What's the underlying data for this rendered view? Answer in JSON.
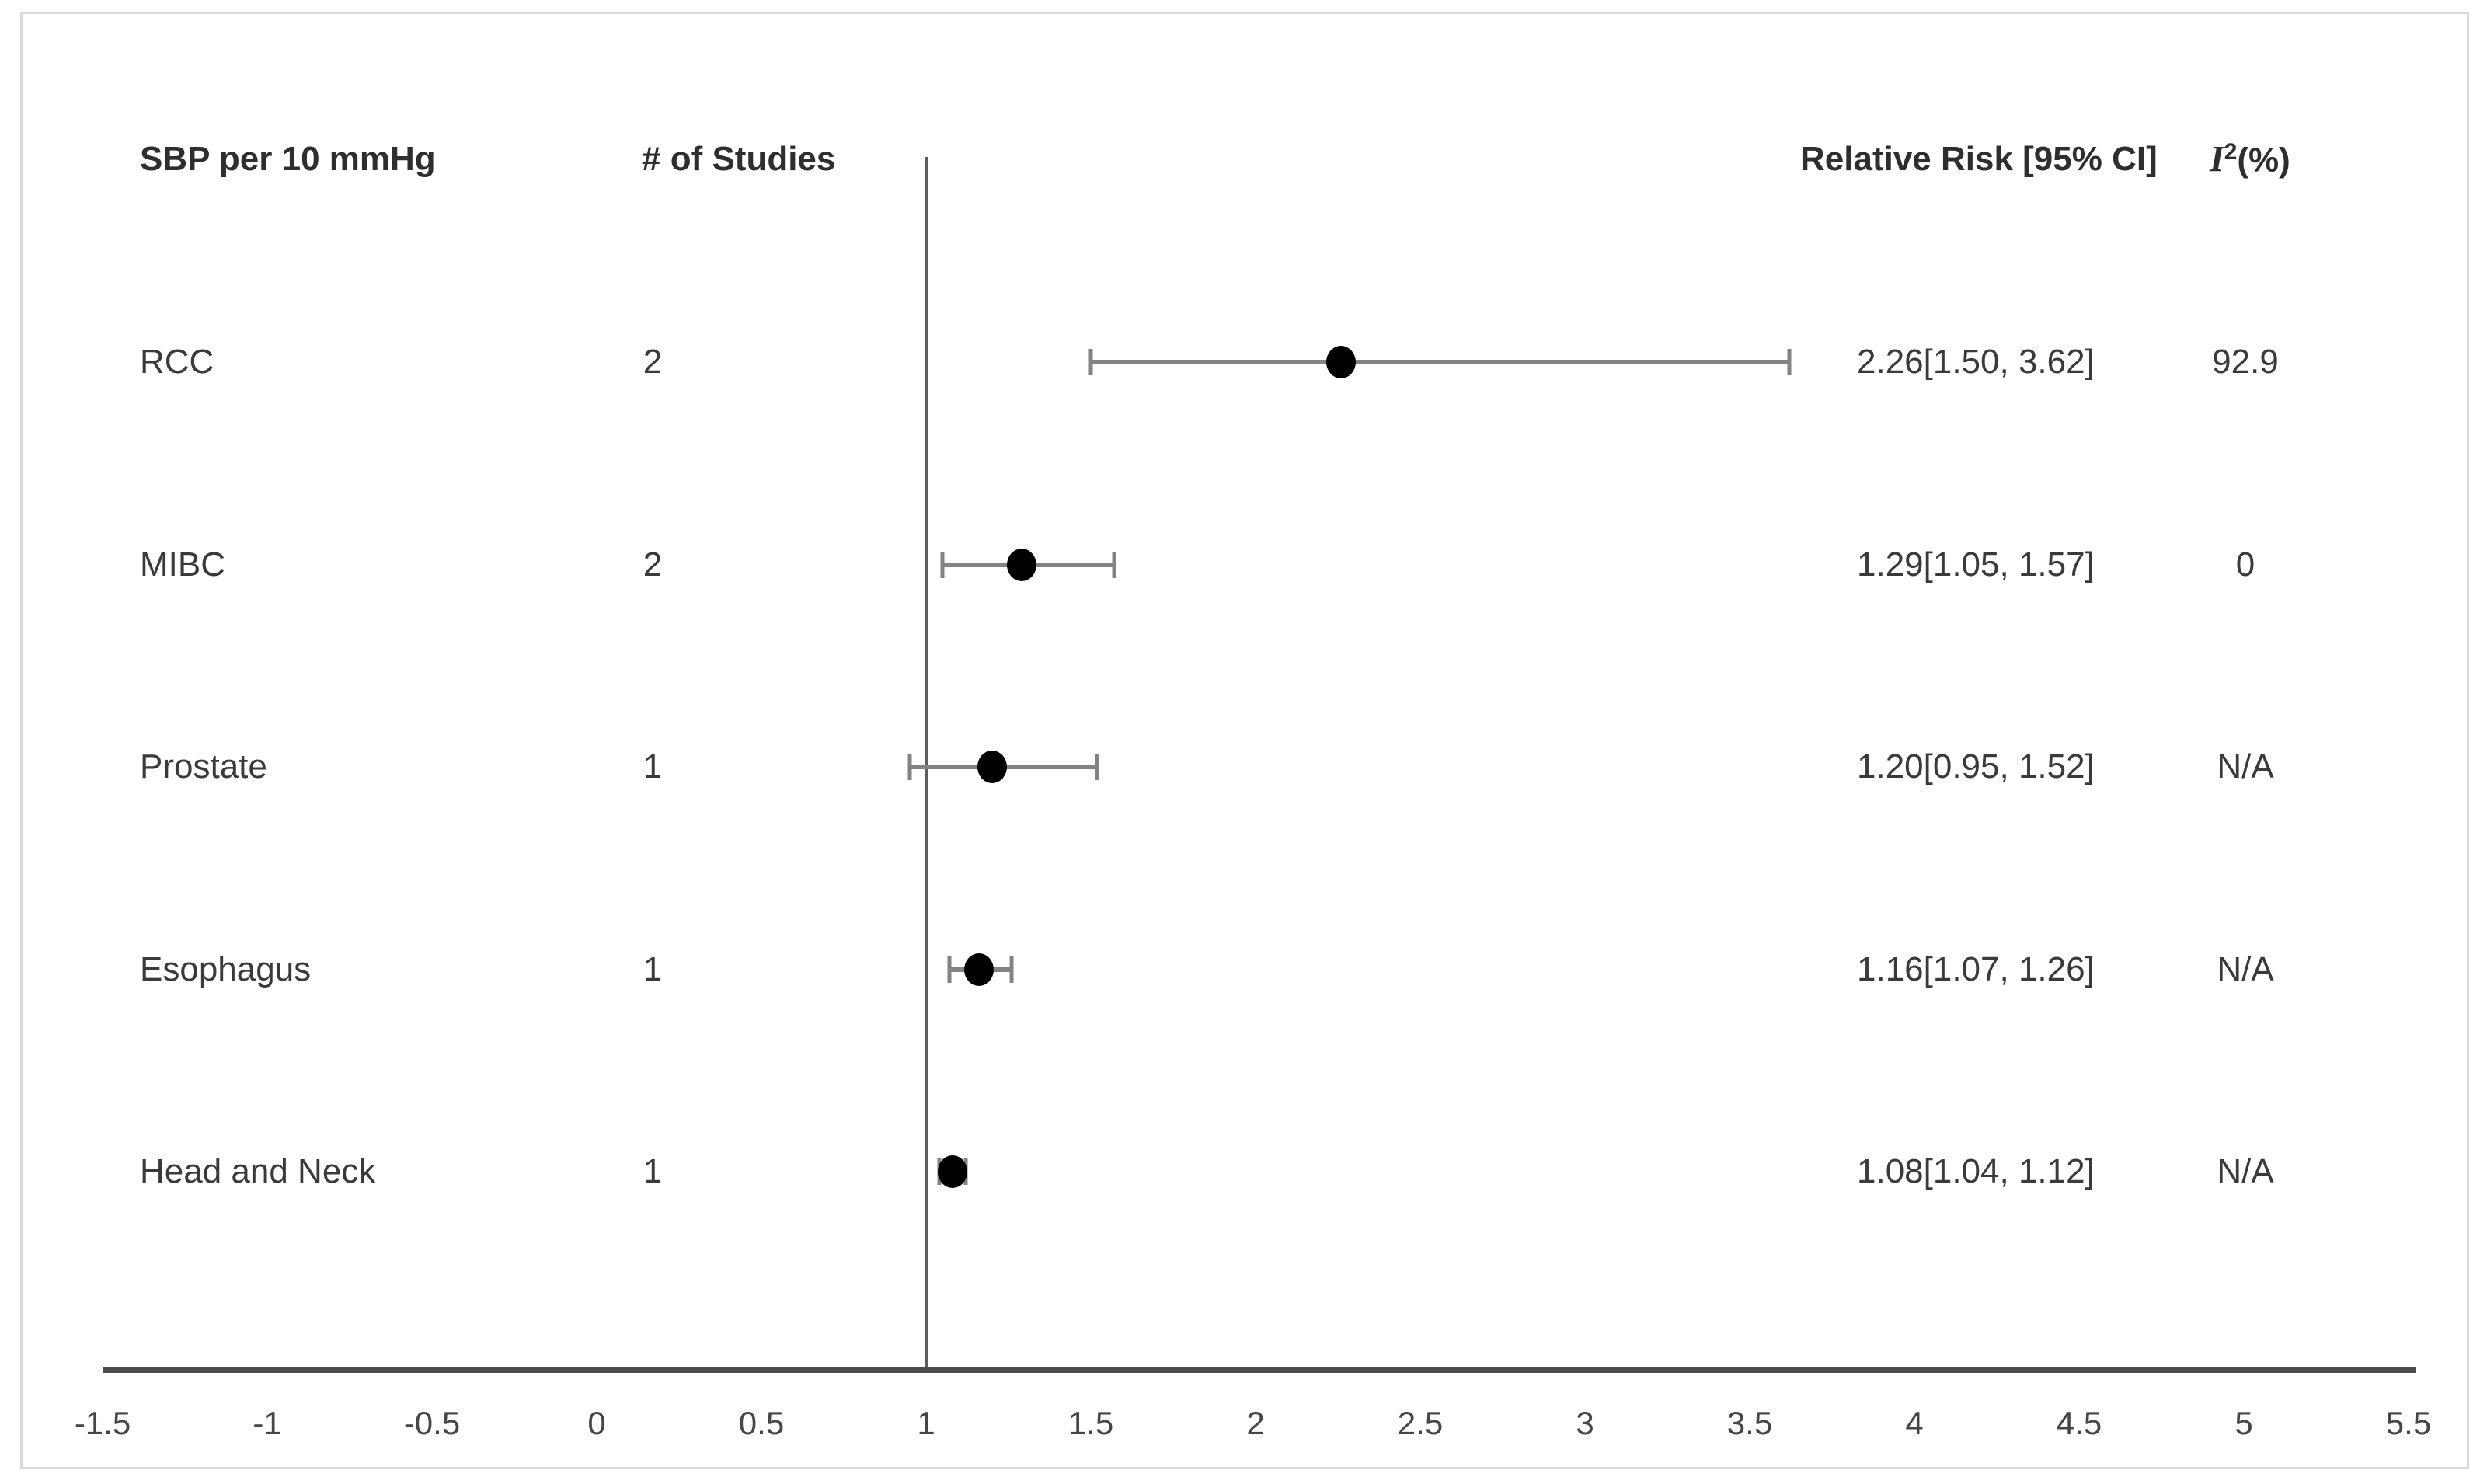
{
  "figure": {
    "background_color": "#ffffff",
    "border_color": "#dadada"
  },
  "header": {
    "exposure": "SBP per 10 mmHg",
    "studies": "# of Studies",
    "relative_risk": "Relative Risk [95% CI]",
    "i2_base": "I",
    "i2_sup": "2",
    "i2_suffix": "(%)"
  },
  "chart_data": {
    "type": "forest",
    "title": "SBP per 10 mmHg",
    "x_axis": {
      "min": -1.5,
      "max": 5.5,
      "step": 0.5,
      "tick_labels": [
        "-1.5",
        "-1",
        "-0.5",
        "0",
        "0.5",
        "1",
        "1.5",
        "2",
        "2.5",
        "3",
        "3.5",
        "4",
        "4.5",
        "5",
        "5.5"
      ],
      "reference_line_x": 1
    },
    "grid": "off",
    "legend": "none",
    "rows": [
      {
        "label": "RCC",
        "n_studies": "2",
        "estimate": 2.26,
        "ci_low": 1.5,
        "ci_high": 3.62,
        "rr_text": "2.26[1.50, 3.62]",
        "i2": "92.9"
      },
      {
        "label": "MIBC",
        "n_studies": "2",
        "estimate": 1.29,
        "ci_low": 1.05,
        "ci_high": 1.57,
        "rr_text": "1.29[1.05, 1.57]",
        "i2": "0"
      },
      {
        "label": "Prostate",
        "n_studies": "1",
        "estimate": 1.2,
        "ci_low": 0.95,
        "ci_high": 1.52,
        "rr_text": "1.20[0.95, 1.52]",
        "i2": "N/A"
      },
      {
        "label": "Esophagus",
        "n_studies": "1",
        "estimate": 1.16,
        "ci_low": 1.07,
        "ci_high": 1.26,
        "rr_text": "1.16[1.07, 1.26]",
        "i2": "N/A"
      },
      {
        "label": "Head and Neck",
        "n_studies": "1",
        "estimate": 1.08,
        "ci_low": 1.04,
        "ci_high": 1.12,
        "rr_text": "1.08[1.04, 1.12]",
        "i2": "N/A"
      }
    ],
    "colors": {
      "marker": "#000000",
      "error_bar": "#838383",
      "axis": "#4d4d4d",
      "reference_line": "#5c5c5c",
      "text": "#3a3a3a"
    }
  }
}
